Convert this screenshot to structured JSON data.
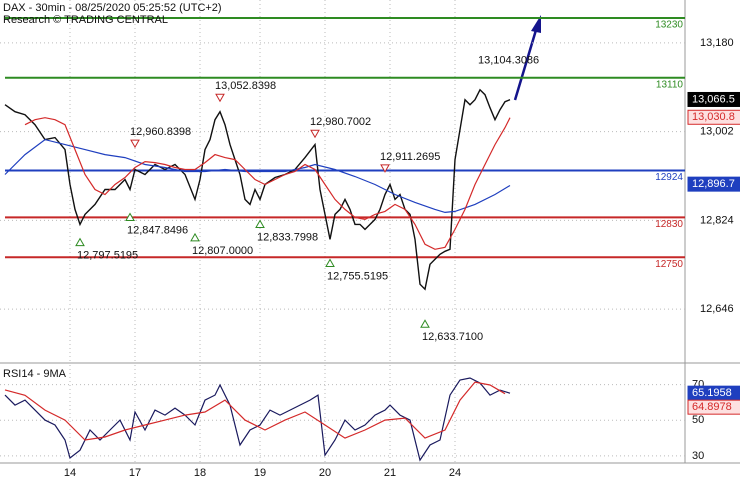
{
  "chart_data": [
    {
      "type": "line",
      "title": "DAX - 30min - 08/25/2020 05:25:52 (UTC+2)",
      "subtitle": "Research © TRADING CENTRAL",
      "xlim": [
        0,
        137
      ],
      "xticks": [
        14,
        27,
        40,
        52,
        65,
        78,
        91
      ],
      "ylim": [
        12540,
        13266
      ],
      "yticks": [
        {
          "value": 13180,
          "label": "13,180"
        },
        {
          "value": 13002,
          "label": "13,002"
        },
        {
          "value": 12824,
          "label": "12,824"
        },
        {
          "value": 12646,
          "label": "12,646"
        }
      ],
      "grid": true,
      "series": [
        {
          "color": "#111111",
          "x": [
            1,
            3,
            5,
            7,
            9,
            11,
            13,
            14,
            15,
            16,
            17,
            19,
            21,
            23,
            25,
            26,
            27,
            29,
            31,
            33,
            35,
            37,
            39,
            40,
            41,
            42,
            43,
            44,
            45,
            46,
            47,
            48,
            49,
            50,
            51,
            52,
            53,
            55,
            57,
            59,
            61,
            63,
            64,
            65,
            66,
            67,
            68,
            69,
            70,
            71,
            72,
            73,
            74,
            75,
            76,
            77,
            78,
            79,
            80,
            81,
            82,
            83,
            84,
            85,
            86,
            87,
            88,
            89,
            90,
            91,
            92,
            93,
            94,
            95,
            96,
            97,
            98,
            99,
            100,
            101,
            102
          ],
          "values": [
            13056,
            13042,
            13036,
            13016,
            12986,
            12990,
            12966,
            12896,
            12846,
            12816,
            12836,
            12856,
            12886,
            12886,
            12906,
            12886,
            12926,
            12916,
            12936,
            12926,
            12936,
            12916,
            12866,
            12906,
            12966,
            12986,
            13026,
            13042,
            13016,
            12976,
            12946,
            12916,
            12866,
            12856,
            12886,
            12866,
            12896,
            12910,
            12916,
            12926,
            12950,
            12976,
            12886,
            12836,
            12786,
            12836,
            12846,
            12866,
            12846,
            12816,
            12816,
            12806,
            12816,
            12826,
            12846,
            12876,
            12896,
            12866,
            12876,
            12846,
            12836,
            12786,
            12696,
            12686,
            12736,
            12746,
            12756,
            12762,
            12766,
            12946,
            13006,
            13066,
            13056,
            13066,
            13086,
            13076,
            13050,
            13026,
            13046,
            13062,
            13066
          ]
        },
        {
          "color": "#1f3fbf",
          "x": [
            1,
            5,
            9,
            13,
            17,
            21,
            25,
            29,
            33,
            37,
            41,
            45,
            49,
            53,
            57,
            61,
            63,
            67,
            71,
            75,
            79,
            83,
            87,
            89,
            91,
            95,
            99,
            102
          ],
          "values": [
            12916,
            12956,
            12986,
            12976,
            12966,
            12956,
            12950,
            12936,
            12930,
            12922,
            12922,
            12926,
            12922,
            12922,
            12922,
            12930,
            12936,
            12926,
            12912,
            12896,
            12876,
            12860,
            12846,
            12840,
            12842,
            12856,
            12876,
            12894
          ]
        },
        {
          "color": "#d42a2a",
          "x": [
            5,
            7,
            9,
            11,
            13,
            15,
            17,
            19,
            21,
            23,
            25,
            27,
            29,
            31,
            33,
            35,
            37,
            39,
            41,
            43,
            45,
            47,
            49,
            51,
            53,
            55,
            57,
            59,
            61,
            63,
            65,
            67,
            69,
            71,
            73,
            75,
            77,
            79,
            81,
            83,
            85,
            87,
            89,
            91,
            93,
            95,
            97,
            99,
            101,
            102
          ],
          "values": [
            13016,
            13026,
            13030,
            13026,
            13016,
            12966,
            12916,
            12886,
            12876,
            12896,
            12910,
            12930,
            12942,
            12940,
            12936,
            12930,
            12926,
            12926,
            12940,
            12956,
            12950,
            12946,
            12926,
            12906,
            12896,
            12906,
            12916,
            12922,
            12936,
            12926,
            12896,
            12866,
            12846,
            12830,
            12826,
            12836,
            12842,
            12856,
            12846,
            12816,
            12776,
            12766,
            12770,
            12806,
            12846,
            12896,
            12936,
            12976,
            13010,
            13030
          ]
        }
      ],
      "levels": [
        {
          "value": 13230,
          "color": "#2e8b22"
        },
        {
          "value": 13110,
          "color": "#2e8b22"
        },
        {
          "value": 12924,
          "color": "#1f3fbf"
        },
        {
          "value": 12830,
          "color": "#c62828"
        },
        {
          "value": 12750,
          "color": "#c62828"
        }
      ],
      "highs": [
        {
          "x": 27,
          "value": 12960.8398,
          "label": "12,960.8398"
        },
        {
          "x": 44,
          "value": 13052.8398,
          "label": "13,052.8398"
        },
        {
          "x": 63,
          "value": 12980.7002,
          "label": "12,980.7002"
        },
        {
          "x": 77,
          "value": 12911.2695,
          "label": "12,911.2695"
        }
      ],
      "lows": [
        {
          "x": 16,
          "value": 12797.5195,
          "label": "12,797.5195"
        },
        {
          "x": 26,
          "value": 12847.8496,
          "label": "12,847.8496"
        },
        {
          "x": 39,
          "value": 12807.0,
          "label": "12,807.0000"
        },
        {
          "x": 52,
          "value": 12833.7998,
          "label": "12,833.7998"
        },
        {
          "x": 66,
          "value": 12755.5195,
          "label": "12,755.5195"
        },
        {
          "x": 85,
          "value": 12633.71,
          "label": "12,633.7100"
        }
      ],
      "peak": {
        "x": 97,
        "value": 13104.3086,
        "label": "13,104.3086"
      },
      "badges": [
        {
          "value": 13066.5,
          "label": "13,066.5",
          "color": "#000000",
          "text_color": "#ffffff"
        },
        {
          "value": 13030.8,
          "label": "13,030.8",
          "color": "#fde0e0",
          "text_color": "#d42a2a"
        },
        {
          "value": 12896.7,
          "label": "12,896.7",
          "color": "#1f3fbf",
          "text_color": "#ffffff"
        }
      ]
    },
    {
      "type": "line",
      "title": "RSI14 - 9MA",
      "xlim": [
        0,
        137
      ],
      "xticks": [
        {
          "value": 14,
          "label": "14"
        },
        {
          "value": 27,
          "label": "17"
        },
        {
          "value": 40,
          "label": "18"
        },
        {
          "value": 52,
          "label": "19"
        },
        {
          "value": 65,
          "label": "20"
        },
        {
          "value": 78,
          "label": "21"
        },
        {
          "value": 91,
          "label": "24"
        }
      ],
      "ylim": [
        26,
        81
      ],
      "yticks": [
        30,
        50,
        70
      ],
      "grid": true,
      "series": [
        {
          "color": "#1a1a5e",
          "x": [
            1,
            3,
            5,
            7,
            9,
            11,
            13,
            14,
            16,
            18,
            20,
            22,
            24,
            26,
            27,
            29,
            31,
            33,
            35,
            37,
            39,
            41,
            43,
            44,
            46,
            48,
            50,
            52,
            54,
            56,
            58,
            60,
            62,
            63.6,
            65,
            67,
            69,
            71,
            73,
            75,
            77,
            78,
            80,
            82,
            84,
            86,
            88,
            90,
            92,
            94,
            96,
            98,
            100,
            102
          ],
          "values": [
            64.1,
            58.5,
            61.3,
            55.7,
            50.1,
            47.3,
            38.9,
            28.8,
            33.2,
            44.5,
            38.9,
            44.5,
            50.1,
            38.9,
            54.6,
            44.5,
            55.7,
            52.9,
            56.8,
            52.9,
            47.3,
            61.3,
            64.1,
            69.8,
            58.5,
            36.1,
            44.5,
            47.3,
            55.7,
            52.9,
            55.7,
            58.5,
            61.3,
            64.1,
            30.4,
            38.9,
            50.1,
            44.5,
            47.3,
            52.9,
            55.7,
            58.5,
            52.9,
            50.1,
            27.6,
            36.1,
            38.9,
            64.1,
            72.6,
            73.7,
            70.9,
            64.1,
            66.9,
            65.2
          ]
        },
        {
          "color": "#d42a2a",
          "x": [
            1,
            5,
            9,
            13,
            17,
            21,
            25,
            29,
            33,
            37,
            41,
            45,
            49,
            53,
            57,
            61,
            65,
            69,
            73,
            77,
            81,
            85,
            89,
            92,
            95,
            98,
            101
          ],
          "values": [
            67,
            64,
            55.7,
            50.1,
            38.9,
            40.6,
            44.5,
            47.3,
            50.1,
            52.9,
            54.6,
            61.3,
            50.1,
            44.5,
            50.1,
            54.6,
            47.3,
            40,
            44.5,
            50.1,
            51.2,
            40,
            44.5,
            61.3,
            71.4,
            69.8,
            64.9
          ]
        }
      ],
      "badges": [
        {
          "value": 65.1958,
          "color": "#1f3fbf",
          "text_color": "#ffffff"
        },
        {
          "value": 64.8978,
          "color": "#fde0e0",
          "text_color": "#d42a2a"
        }
      ]
    }
  ]
}
